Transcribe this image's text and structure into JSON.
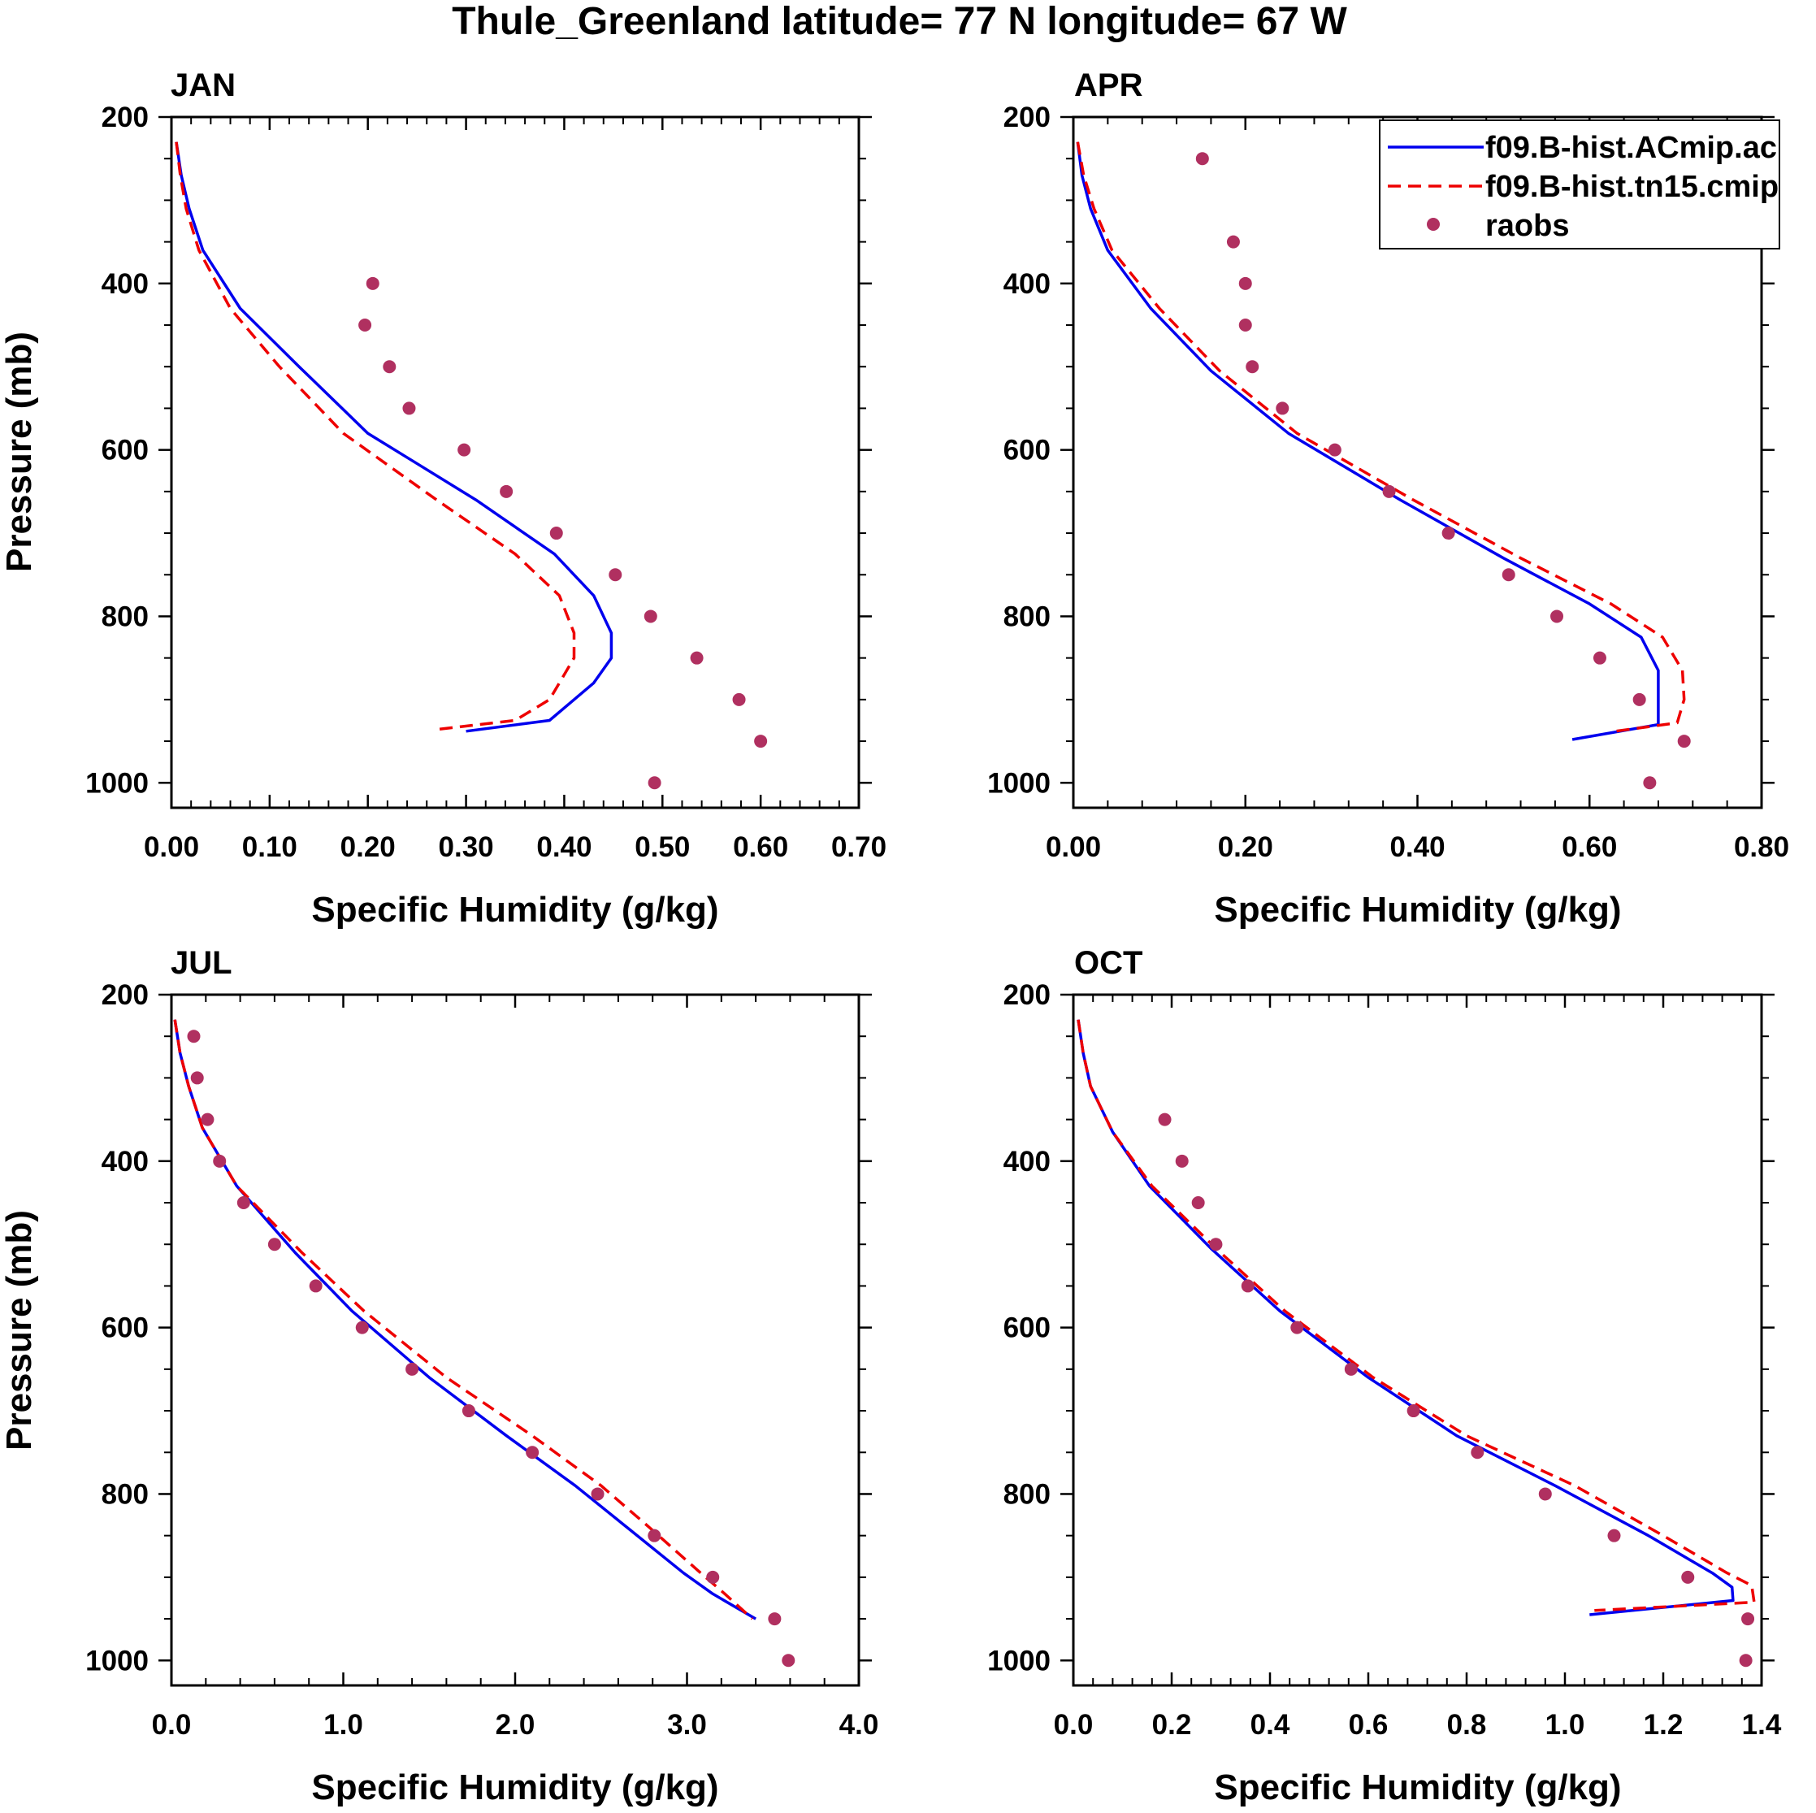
{
  "title": "Thule_Greenland  latitude= 77 N longitude= 67 W",
  "legend": [
    {
      "label": "f09.B-hist.ACmip.ac",
      "style": "solid",
      "color": "#0000ee"
    },
    {
      "label": "f09.B-hist.tn15.cmip",
      "style": "dashed",
      "color": "#ee0000"
    },
    {
      "label": "raobs",
      "style": "dot",
      "color": "#b03060"
    }
  ],
  "colors": {
    "model_a": "#0000ee",
    "model_b": "#ee0000",
    "obs": "#b03060"
  },
  "chart_data": [
    {
      "type": "line",
      "title": "JAN",
      "xlabel": "Specific Humidity (g/kg)",
      "ylabel": "Pressure (mb)",
      "xlim": [
        0,
        0.7
      ],
      "ylim": [
        200,
        1030
      ],
      "y_reversed": true,
      "xticks": [
        0,
        0.1,
        0.2,
        0.3,
        0.4,
        0.5,
        0.6,
        0.7
      ],
      "xtick_labels": [
        "0.00",
        "0.10",
        "0.20",
        "0.30",
        "0.40",
        "0.50",
        "0.60",
        "0.70"
      ],
      "yticks": [
        200,
        400,
        600,
        800,
        1000
      ],
      "ytick_labels": [
        "200",
        "400",
        "600",
        "800",
        "1000"
      ],
      "series": [
        {
          "name": "f09.B-hist.ACmip.ac",
          "pressure": [
            230,
            270,
            310,
            360,
            430,
            500,
            580,
            660,
            725,
            775,
            820,
            850,
            880,
            900,
            925,
            938
          ],
          "values": [
            0.005,
            0.01,
            0.018,
            0.032,
            0.07,
            0.13,
            0.2,
            0.31,
            0.39,
            0.43,
            0.448,
            0.448,
            0.43,
            0.41,
            0.385,
            0.3
          ]
        },
        {
          "name": "f09.B-hist.tn15.cmip",
          "pressure": [
            230,
            270,
            310,
            360,
            430,
            500,
            580,
            660,
            725,
            775,
            820,
            850,
            880,
            900,
            925,
            936
          ],
          "values": [
            0.005,
            0.009,
            0.015,
            0.028,
            0.06,
            0.11,
            0.175,
            0.27,
            0.35,
            0.395,
            0.41,
            0.41,
            0.395,
            0.385,
            0.35,
            0.27
          ]
        },
        {
          "name": "raobs",
          "pressure": [
            400,
            450,
            500,
            550,
            600,
            650,
            700,
            750,
            800,
            850,
            900,
            950,
            1000
          ],
          "values": [
            0.205,
            0.197,
            0.222,
            0.242,
            0.298,
            0.341,
            0.392,
            0.452,
            0.488,
            0.535,
            0.578,
            0.6,
            0.492
          ]
        }
      ]
    },
    {
      "type": "line",
      "title": "APR",
      "xlabel": "Specific Humidity (g/kg)",
      "ylabel": "",
      "xlim": [
        0,
        0.8
      ],
      "ylim": [
        200,
        1030
      ],
      "y_reversed": true,
      "xticks": [
        0,
        0.2,
        0.4,
        0.6,
        0.8
      ],
      "xtick_labels": [
        "0.00",
        "0.20",
        "0.40",
        "0.60",
        "0.80"
      ],
      "yticks": [
        200,
        400,
        600,
        800,
        1000
      ],
      "ytick_labels": [
        "200",
        "400",
        "600",
        "800",
        "1000"
      ],
      "series": [
        {
          "name": "f09.B-hist.ACmip.ac",
          "pressure": [
            230,
            270,
            310,
            360,
            430,
            505,
            580,
            660,
            730,
            785,
            825,
            865,
            900,
            930,
            948
          ],
          "values": [
            0.005,
            0.01,
            0.02,
            0.04,
            0.09,
            0.16,
            0.25,
            0.38,
            0.5,
            0.6,
            0.66,
            0.68,
            0.68,
            0.68,
            0.58
          ]
        },
        {
          "name": "f09.B-hist.tn15.cmip",
          "pressure": [
            230,
            270,
            310,
            360,
            430,
            505,
            580,
            660,
            730,
            785,
            825,
            865,
            900,
            928,
            938
          ],
          "values": [
            0.005,
            0.012,
            0.024,
            0.045,
            0.1,
            0.17,
            0.26,
            0.395,
            0.52,
            0.625,
            0.685,
            0.708,
            0.71,
            0.702,
            0.63
          ]
        },
        {
          "name": "raobs",
          "pressure": [
            250,
            350,
            400,
            450,
            500,
            550,
            600,
            650,
            700,
            750,
            800,
            850,
            900,
            950,
            1000
          ],
          "values": [
            0.15,
            0.186,
            0.2,
            0.2,
            0.208,
            0.243,
            0.304,
            0.367,
            0.436,
            0.506,
            0.562,
            0.612,
            0.658,
            0.71,
            0.67
          ]
        }
      ]
    },
    {
      "type": "line",
      "title": "JUL",
      "xlabel": "Specific Humidity (g/kg)",
      "ylabel": "Pressure (mb)",
      "xlim": [
        0,
        4.0
      ],
      "ylim": [
        200,
        1030
      ],
      "y_reversed": true,
      "xticks": [
        0,
        1,
        2,
        3,
        4
      ],
      "xtick_labels": [
        "0.0",
        "1.0",
        "2.0",
        "3.0",
        "4.0"
      ],
      "yticks": [
        200,
        400,
        600,
        800,
        1000
      ],
      "ytick_labels": [
        "200",
        "400",
        "600",
        "800",
        "1000"
      ],
      "series": [
        {
          "name": "f09.B-hist.ACmip.ac",
          "pressure": [
            230,
            270,
            310,
            360,
            430,
            510,
            580,
            660,
            730,
            790,
            840,
            895,
            920,
            950
          ],
          "values": [
            0.02,
            0.05,
            0.1,
            0.18,
            0.38,
            0.72,
            1.05,
            1.5,
            1.95,
            2.35,
            2.65,
            2.98,
            3.15,
            3.4
          ]
        },
        {
          "name": "f09.B-hist.tn15.cmip",
          "pressure": [
            230,
            270,
            310,
            360,
            430,
            510,
            580,
            660,
            730,
            790,
            840,
            895,
            920,
            950
          ],
          "values": [
            0.02,
            0.05,
            0.1,
            0.18,
            0.38,
            0.76,
            1.12,
            1.6,
            2.1,
            2.5,
            2.78,
            3.08,
            3.22,
            3.38
          ]
        },
        {
          "name": "raobs",
          "pressure": [
            250,
            300,
            350,
            400,
            450,
            500,
            550,
            600,
            650,
            700,
            750,
            800,
            850,
            900,
            950,
            1000
          ],
          "values": [
            0.13,
            0.15,
            0.21,
            0.28,
            0.42,
            0.6,
            0.84,
            1.11,
            1.4,
            1.73,
            2.1,
            2.48,
            2.81,
            3.15,
            3.51,
            3.59
          ]
        }
      ]
    },
    {
      "type": "line",
      "title": "OCT",
      "xlabel": "Specific Humidity (g/kg)",
      "ylabel": "",
      "xlim": [
        0,
        1.4
      ],
      "ylim": [
        200,
        1030
      ],
      "y_reversed": true,
      "xticks": [
        0,
        0.2,
        0.4,
        0.6,
        0.8,
        1.0,
        1.2,
        1.4
      ],
      "xtick_labels": [
        "0.0",
        "0.2",
        "0.4",
        "0.6",
        "0.8",
        "1.0",
        "1.2",
        "1.4"
      ],
      "yticks": [
        200,
        400,
        600,
        800,
        1000
      ],
      "ytick_labels": [
        "200",
        "400",
        "600",
        "800",
        "1000"
      ],
      "series": [
        {
          "name": "f09.B-hist.ACmip.ac",
          "pressure": [
            230,
            270,
            310,
            365,
            430,
            505,
            580,
            660,
            730,
            790,
            850,
            895,
            912,
            928,
            945
          ],
          "values": [
            0.01,
            0.02,
            0.035,
            0.08,
            0.155,
            0.28,
            0.42,
            0.6,
            0.78,
            0.98,
            1.17,
            1.3,
            1.34,
            1.342,
            1.05
          ]
        },
        {
          "name": "f09.B-hist.tn15.cmip",
          "pressure": [
            230,
            270,
            310,
            365,
            430,
            505,
            580,
            660,
            730,
            790,
            850,
            895,
            910,
            930,
            940
          ],
          "values": [
            0.01,
            0.02,
            0.035,
            0.08,
            0.16,
            0.29,
            0.43,
            0.61,
            0.8,
            1.02,
            1.2,
            1.33,
            1.38,
            1.385,
            1.06
          ]
        },
        {
          "name": "raobs",
          "pressure": [
            350,
            400,
            450,
            500,
            550,
            600,
            650,
            700,
            750,
            800,
            850,
            900,
            950,
            1000
          ],
          "values": [
            0.186,
            0.221,
            0.254,
            0.29,
            0.355,
            0.455,
            0.565,
            0.692,
            0.822,
            0.96,
            1.1,
            1.25,
            1.372,
            1.368
          ]
        }
      ]
    }
  ]
}
